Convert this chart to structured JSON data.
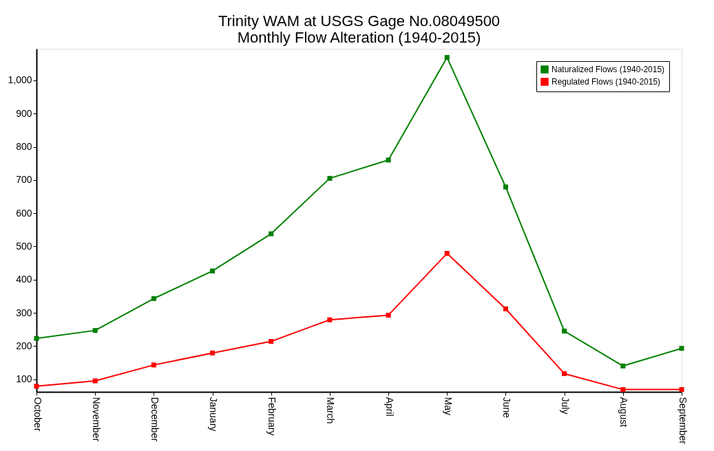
{
  "chart_data": {
    "type": "line",
    "title": [
      "Trinity WAM at USGS Gage No.08049500",
      "Monthly Flow Alteration (1940-2015)"
    ],
    "categories": [
      "October",
      "November",
      "December",
      "January",
      "February",
      "March",
      "April",
      "May",
      "June",
      "July",
      "August",
      "September"
    ],
    "series": [
      {
        "name": "Naturalized Flows (1940-2015)",
        "color": "#008000",
        "values": [
          223,
          247,
          343,
          426,
          538,
          705,
          760,
          1069,
          679,
          245,
          140,
          193
        ]
      },
      {
        "name": "Regulated Flows (1940-2015)",
        "color": "#ff0000",
        "values": [
          79,
          95,
          143,
          179,
          214,
          279,
          293,
          479,
          312,
          117,
          69,
          69
        ]
      }
    ],
    "ylim": [
      62,
      1095
    ],
    "yticks": [
      100,
      200,
      300,
      400,
      500,
      600,
      700,
      800,
      900,
      {
        "value": 1000,
        "label": "1,000"
      }
    ],
    "grid": false,
    "legend": "top right",
    "marker": "square",
    "line_style": "solid"
  }
}
